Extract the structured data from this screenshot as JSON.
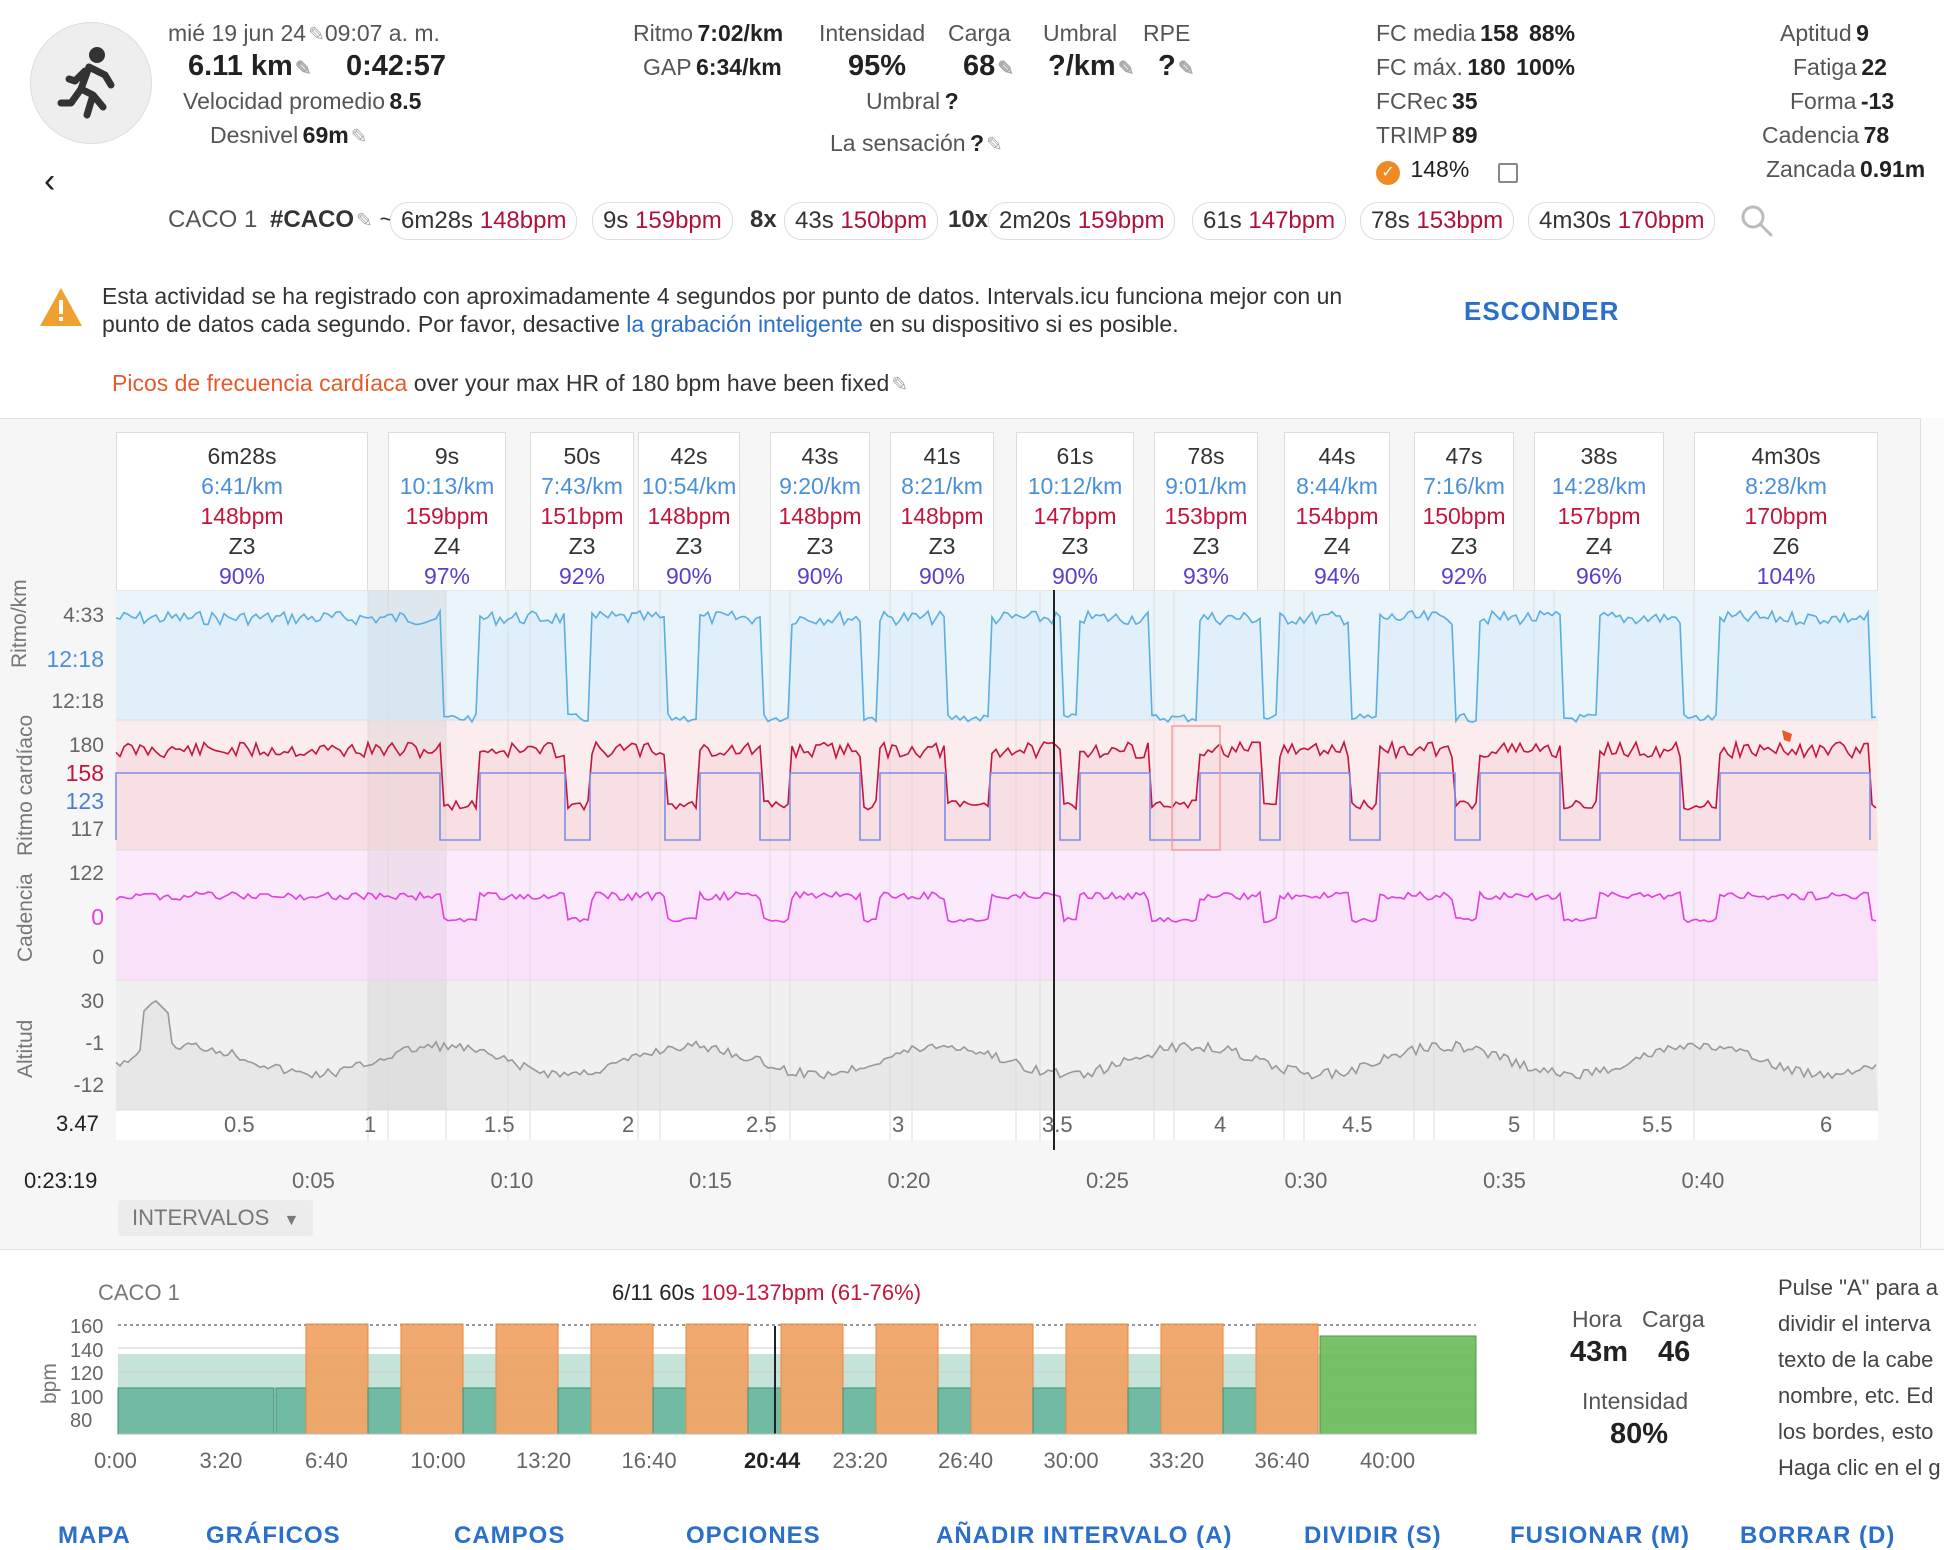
{
  "header": {
    "date": "mié 19 jun 24",
    "time": "09:07 a. m.",
    "distance": "6.11 km",
    "duration": "0:42:57",
    "avg_speed_label": "Velocidad promedio",
    "avg_speed": "8.5",
    "elevation_label": "Desnivel",
    "elevation": "69m",
    "pace_label": "Ritmo",
    "pace": "7:02/km",
    "gap_label": "GAP",
    "gap": "6:34/km",
    "intensity_label": "Intensidad",
    "intensity": "95%",
    "load_label": "Carga",
    "load": "68",
    "threshold_label": "Umbral",
    "threshold": "?/km",
    "rpe_label": "RPE",
    "rpe": "?",
    "threshold2_label": "Umbral",
    "threshold2": "?",
    "feel_label": "La sensación",
    "feel": "?",
    "hr_avg_label": "FC media",
    "hr_avg": "158",
    "hr_avg_pct": "88%",
    "hr_max_label": "FC máx.",
    "hr_max": "180",
    "hr_max_pct": "100%",
    "hrrec_label": "FCRec",
    "hrrec": "35",
    "trimp_label": "TRIMP",
    "trimp": "89",
    "check_pct": "148%",
    "fitness_label": "Aptitud",
    "fitness": "9",
    "fatigue_label": "Fatiga",
    "fatigue": "22",
    "form_label": "Forma",
    "form": "-13",
    "cadence_label": "Cadencia",
    "cadence": "78",
    "stride_label": "Zancada",
    "stride": "0.91m"
  },
  "tags": {
    "name": "CACO 1",
    "hashtag": "#CACO",
    "tilde": "~",
    "chips": [
      {
        "pre": "",
        "t": "6m28s",
        "b": "148bpm"
      },
      {
        "pre": "",
        "t": "9s",
        "b": "159bpm"
      },
      {
        "pre": "8x",
        "t": "43s",
        "b": "150bpm"
      },
      {
        "pre": "10x",
        "t": "2m20s",
        "b": "159bpm"
      },
      {
        "pre": "",
        "t": "61s",
        "b": "147bpm"
      },
      {
        "pre": "",
        "t": "78s",
        "b": "153bpm"
      },
      {
        "pre": "",
        "t": "4m30s",
        "b": "170bpm"
      }
    ]
  },
  "warning": {
    "text1": "Esta actividad se ha registrado con aproximadamente 4 segundos por punto de datos. Intervals.icu funciona mejor con un",
    "text2a": "punto de datos cada segundo. Por favor, desactive",
    "link": "la grabación inteligente",
    "text2b": "en su dispositivo si es posible.",
    "hide": "ESCONDER"
  },
  "hr_note": {
    "link": "Picos de frecuencia cardíaca",
    "text": "over your max HR of 180 bpm have been fixed"
  },
  "intervals": [
    {
      "d": "6m28s",
      "p": "6:41/km",
      "h": "148bpm",
      "z": "Z3",
      "pc": "90%"
    },
    {
      "d": "9s",
      "p": "10:13/km",
      "h": "159bpm",
      "z": "Z4",
      "pc": "97%"
    },
    {
      "d": "50s",
      "p": "7:43/km",
      "h": "151bpm",
      "z": "Z3",
      "pc": "92%"
    },
    {
      "d": "42s",
      "p": "10:54/km",
      "h": "148bpm",
      "z": "Z3",
      "pc": "90%"
    },
    {
      "d": "43s",
      "p": "9:20/km",
      "h": "148bpm",
      "z": "Z3",
      "pc": "90%"
    },
    {
      "d": "41s",
      "p": "8:21/km",
      "h": "148bpm",
      "z": "Z3",
      "pc": "90%"
    },
    {
      "d": "61s",
      "p": "10:12/km",
      "h": "147bpm",
      "z": "Z3",
      "pc": "90%"
    },
    {
      "d": "78s",
      "p": "9:01/km",
      "h": "153bpm",
      "z": "Z3",
      "pc": "93%"
    },
    {
      "d": "44s",
      "p": "8:44/km",
      "h": "154bpm",
      "z": "Z4",
      "pc": "94%"
    },
    {
      "d": "47s",
      "p": "7:16/km",
      "h": "150bpm",
      "z": "Z3",
      "pc": "92%"
    },
    {
      "d": "38s",
      "p": "14:28/km",
      "h": "157bpm",
      "z": "Z4",
      "pc": "96%"
    },
    {
      "d": "4m30s",
      "p": "8:28/km",
      "h": "170bpm",
      "z": "Z6",
      "pc": "104%"
    }
  ],
  "axes": {
    "pace_label": "Ritmo/km",
    "pace_ticks": [
      "4:33",
      "12:18",
      "12:18"
    ],
    "hr_label": "Ritmo cardíaco",
    "hr_ticks": [
      "180",
      "158",
      "123",
      "117"
    ],
    "cad_label": "Cadencia",
    "cad_ticks": [
      "122",
      "0",
      "0"
    ],
    "alt_label": "Altitud",
    "alt_ticks": [
      "30",
      "-1",
      "-12"
    ],
    "dist_cursor": "3.47",
    "dist_ticks": [
      "0.5",
      "1",
      "1.5",
      "2",
      "2.5",
      "3",
      "3.5",
      "4",
      "4.5",
      "5",
      "5.5",
      "6"
    ],
    "time_cursor": "0:23:19",
    "time_ticks": [
      "0:05",
      "0:10",
      "0:15",
      "0:20",
      "0:25",
      "0:30",
      "0:35",
      "0:40"
    ]
  },
  "intervals_menu": "INTERVALOS",
  "bottom": {
    "name": "CACO 1",
    "sel": "6/11  60s",
    "sel_hr": "109-137bpm (61-76%)",
    "ylabel": "bpm",
    "yticks": [
      "160",
      "140",
      "120",
      "100",
      "80"
    ],
    "xticks": [
      "0:00",
      "3:20",
      "6:40",
      "10:00",
      "13:20",
      "16:40",
      "20:00",
      "23:20",
      "26:40",
      "30:00",
      "33:20",
      "36:40",
      "40:00"
    ],
    "cursor": "20:44",
    "hora_label": "Hora",
    "hora": "43m",
    "carga_label": "Carga",
    "carga": "46",
    "int_label": "Intensidad",
    "int": "80%",
    "help": [
      "Pulse \"A\" para a",
      "dividir el interva",
      "texto de la cabe",
      "nombre, etc. Ed",
      "los bordes, esto",
      "Haga clic en el g"
    ]
  },
  "tabs": [
    "MAPA",
    "GRÁFICOS",
    "CAMPOS",
    "OPCIONES",
    "AÑADIR INTERVALO (A)",
    "DIVIDIR (S)",
    "FUSIONAR (M)",
    "BORRAR (D)"
  ],
  "colors": {
    "pace": "#5aaee0",
    "hr": "#c4153c",
    "target": "#7b8fe8",
    "cadence": "#e040e0",
    "altitude": "#aaaaaa",
    "work": "#f0a060",
    "rest": "#5bb096",
    "final": "#6cbb5a"
  }
}
